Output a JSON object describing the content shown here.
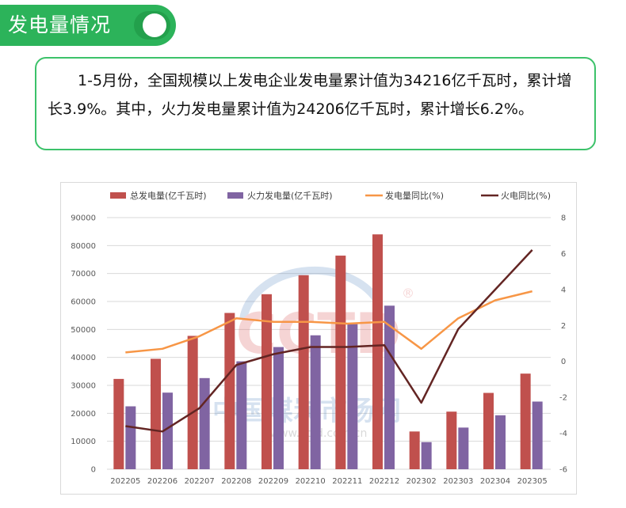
{
  "header": {
    "title": "发电量情况"
  },
  "summary": {
    "text": "1-5月份，全国规模以上发电企业发电量累计值为34216亿千瓦时，累计增长3.9%。其中，火力发电量累计值为24206亿千瓦时，累计增长6.2%。"
  },
  "watermark": {
    "logo": "CCTD",
    "registered": "®",
    "cn_name": "中国煤炭市场网",
    "url": "www.cctd.com.cn"
  },
  "colors": {
    "total_bar": "#c0504d",
    "thermal_bar": "#8064a2",
    "total_yoy_line": "#f79646",
    "thermal_yoy_line": "#632523",
    "accent_green": "#2cb35a"
  },
  "chart_data": {
    "type": "bar",
    "categories": [
      "202205",
      "202206",
      "202207",
      "202208",
      "202209",
      "202210",
      "202211",
      "202212",
      "202302",
      "202303",
      "202304",
      "202305"
    ],
    "series": [
      {
        "name": "总发电量(亿千瓦时)",
        "kind": "bar",
        "axis": "left",
        "values": [
          32300,
          39500,
          47700,
          55900,
          62600,
          69400,
          76400,
          84000,
          13500,
          20600,
          27300,
          34200
        ]
      },
      {
        "name": "火力发电量(亿千瓦时)",
        "kind": "bar",
        "axis": "left",
        "values": [
          22500,
          27400,
          32600,
          38600,
          43700,
          47900,
          51900,
          58500,
          9700,
          14900,
          19300,
          24200
        ]
      },
      {
        "name": "发电量同比(%)",
        "kind": "line",
        "axis": "right",
        "values": [
          0.5,
          0.7,
          1.4,
          2.4,
          2.2,
          2.2,
          2.1,
          2.2,
          0.7,
          2.4,
          3.4,
          3.9
        ]
      },
      {
        "name": "火电同比(%)",
        "kind": "line",
        "axis": "right",
        "values": [
          -3.6,
          -3.9,
          -2.6,
          -0.2,
          0.4,
          0.8,
          0.8,
          0.9,
          -2.3,
          1.8,
          4.0,
          6.2
        ]
      }
    ],
    "y_left": {
      "min": 0,
      "max": 90000,
      "step": 10000,
      "ticks": [
        "0",
        "10000",
        "20000",
        "30000",
        "40000",
        "50000",
        "60000",
        "70000",
        "80000",
        "90000"
      ]
    },
    "y_right": {
      "min": -6,
      "max": 8,
      "step": 2,
      "ticks": [
        "-6",
        "-4",
        "-2",
        "0",
        "2",
        "4",
        "6",
        "8"
      ]
    },
    "grid": true,
    "legend": "top"
  }
}
